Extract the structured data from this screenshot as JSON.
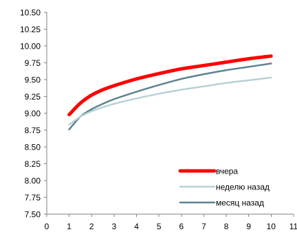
{
  "chart_data": {
    "type": "line",
    "title": "",
    "xlabel": "",
    "ylabel": "",
    "xlim": [
      0,
      11
    ],
    "ylim": [
      7.5,
      10.5
    ],
    "x_ticks": [
      0,
      1,
      2,
      3,
      4,
      5,
      6,
      7,
      8,
      9,
      10,
      11
    ],
    "y_ticks": [
      7.5,
      7.75,
      8.0,
      8.25,
      8.5,
      8.75,
      9.0,
      9.25,
      9.5,
      9.75,
      10.0,
      10.25,
      10.5
    ],
    "y_tick_labels": [
      "7.50",
      "7.75",
      "8.00",
      "8.25",
      "8.50",
      "8.75",
      "9.00",
      "9.25",
      "9.50",
      "9.75",
      "10.00",
      "10.25",
      "10.50"
    ],
    "x_tick_labels": [
      "0",
      "1",
      "2",
      "3",
      "4",
      "5",
      "6",
      "7",
      "8",
      "9",
      "10",
      "11"
    ],
    "grid": false,
    "legend_position": "bottom-right",
    "x": [
      1,
      1.5,
      2,
      2.5,
      3,
      4,
      5,
      6,
      7,
      8,
      9,
      10
    ],
    "series": [
      {
        "name": "вчера",
        "color": "#ff0000",
        "values": [
          8.98,
          9.15,
          9.27,
          9.35,
          9.41,
          9.51,
          9.59,
          9.66,
          9.71,
          9.76,
          9.81,
          9.85
        ]
      },
      {
        "name": "неделю назад",
        "color": "#b8d0d8",
        "values": [
          8.83,
          8.95,
          9.03,
          9.09,
          9.14,
          9.22,
          9.29,
          9.35,
          9.4,
          9.45,
          9.49,
          9.53
        ]
      },
      {
        "name": "месяц назад",
        "color": "#5b8290",
        "values": [
          8.76,
          8.95,
          9.06,
          9.14,
          9.21,
          9.32,
          9.42,
          9.51,
          9.58,
          9.64,
          9.69,
          9.74
        ]
      }
    ]
  }
}
